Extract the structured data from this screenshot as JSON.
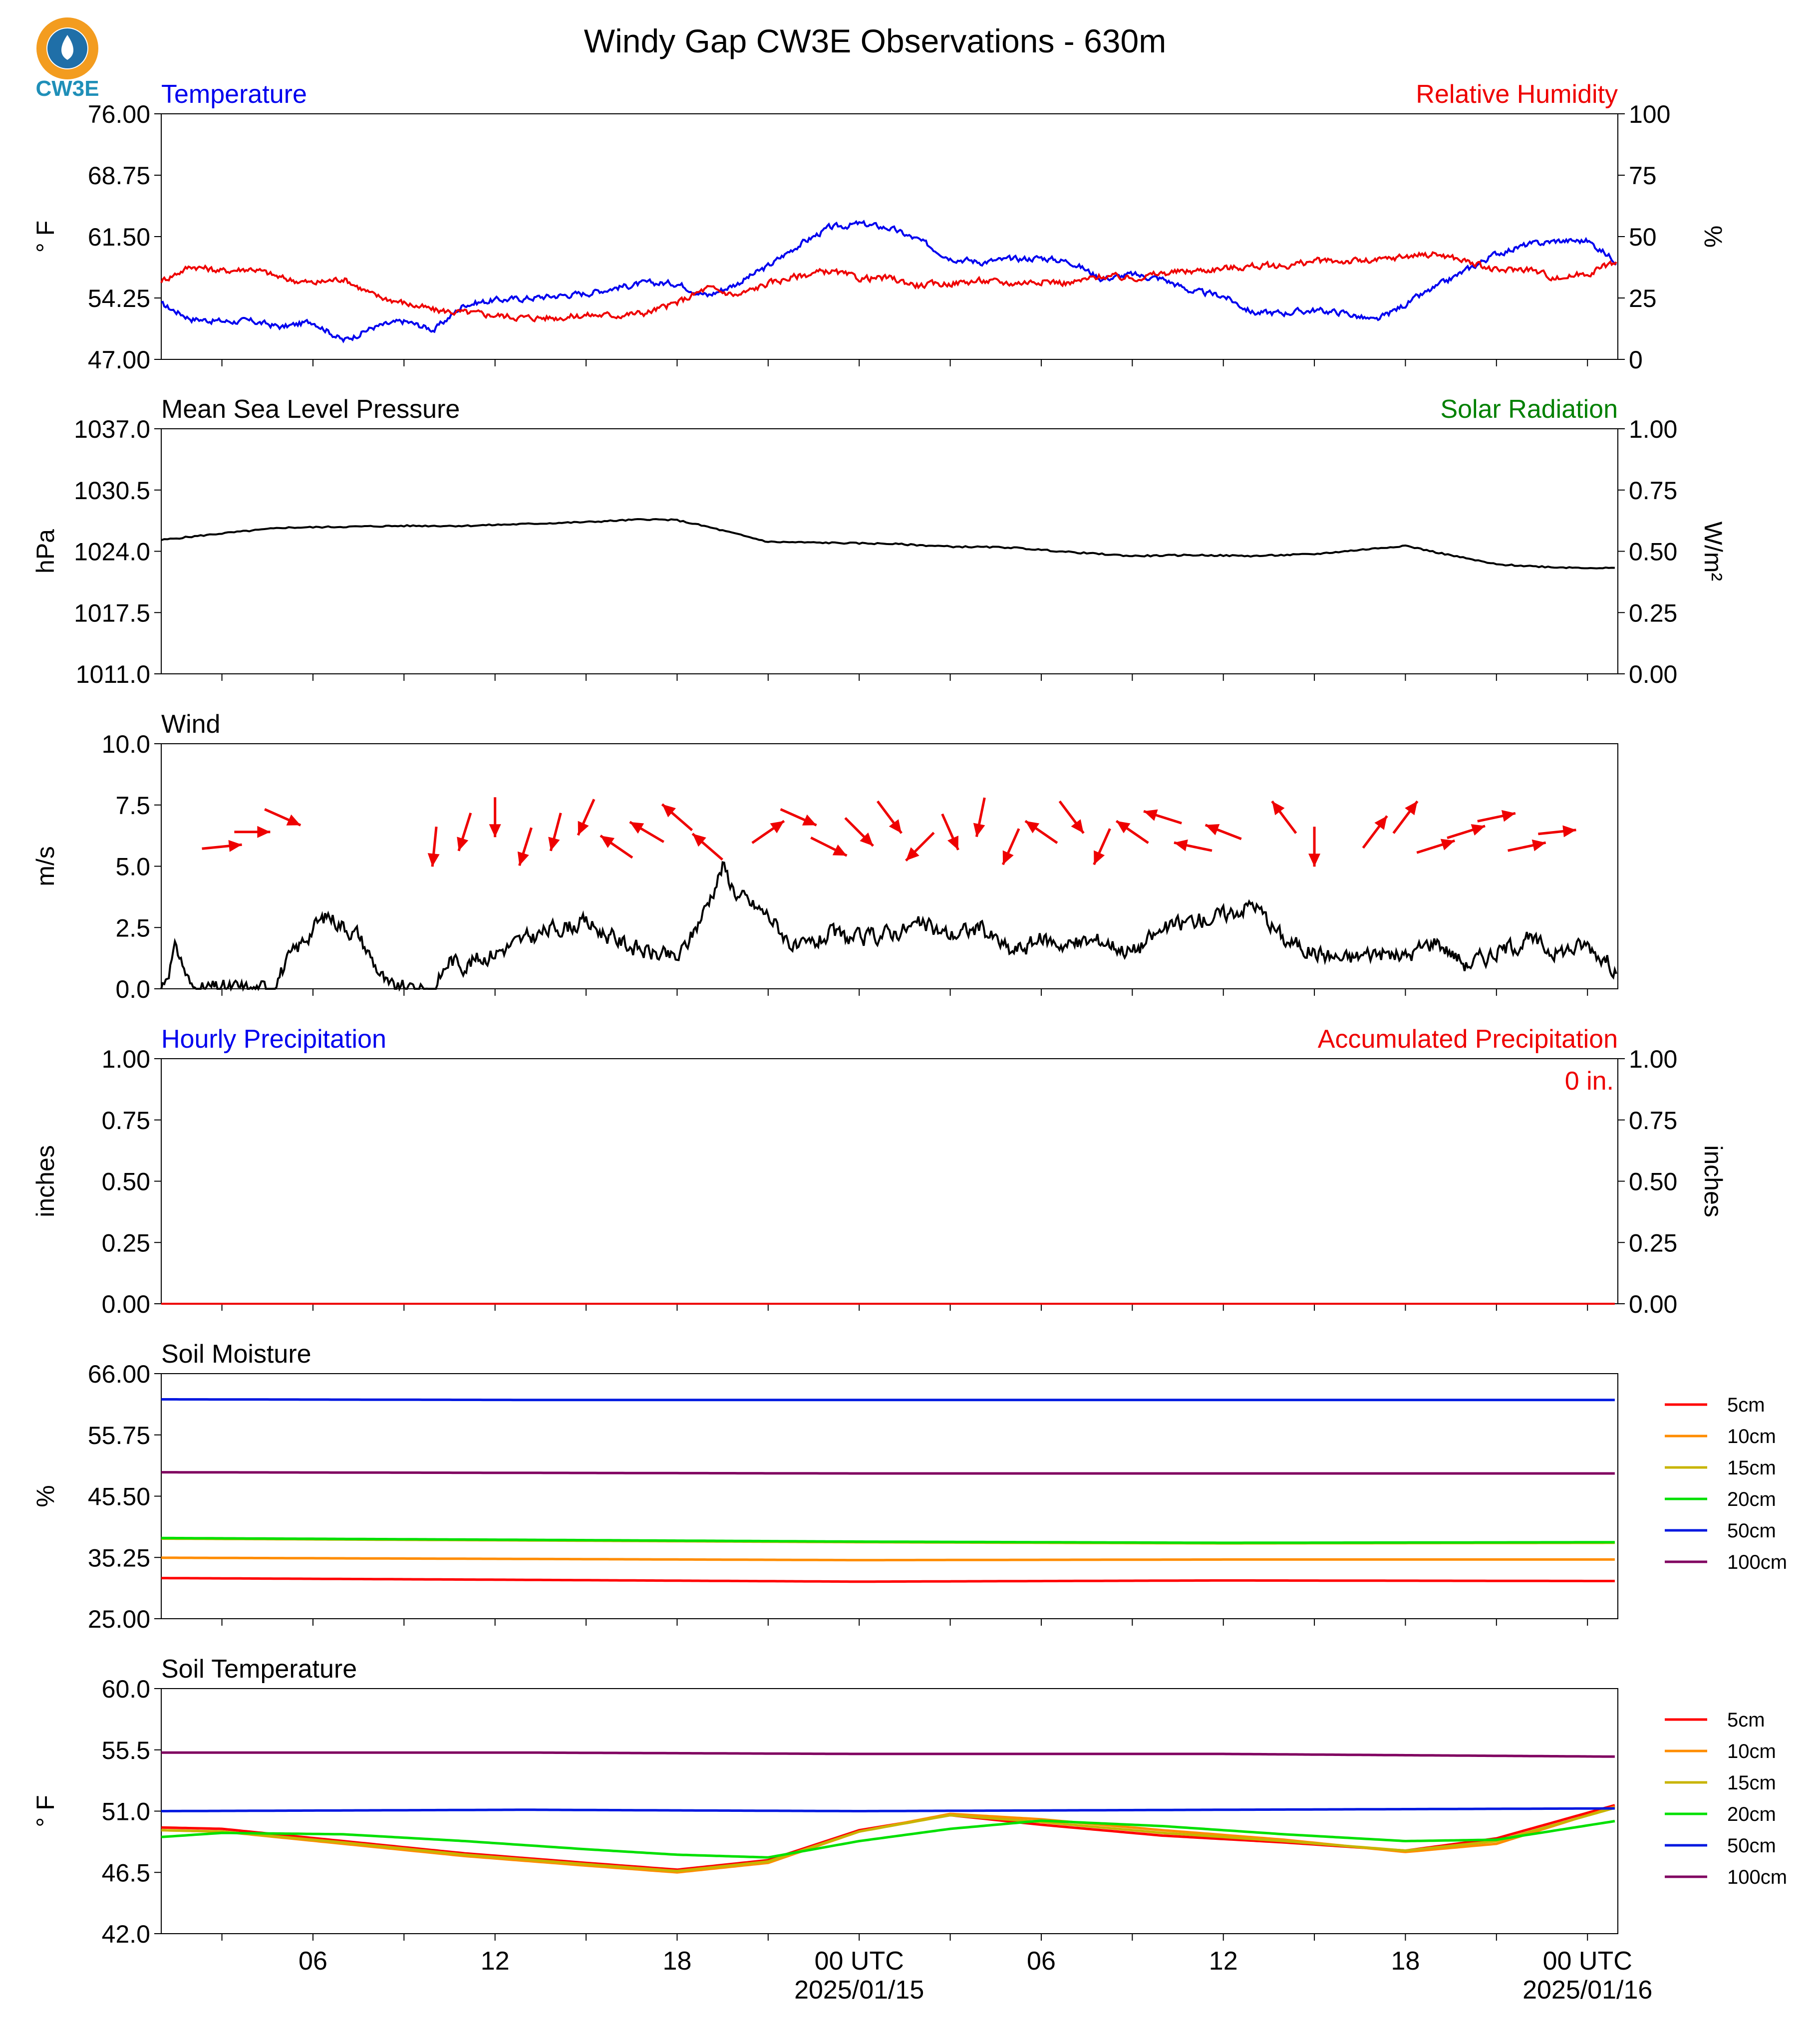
{
  "title": "Windy Gap CW3E Observations - 630m",
  "logo": {
    "text": "CW3E",
    "ring_color": "#f39c1f",
    "drop_color": "#1f6fa8"
  },
  "time_axis": {
    "hours_range": [
      -23,
      25
    ],
    "ticks": [
      {
        "hour": -18,
        "label": "06",
        "sub": ""
      },
      {
        "hour": -12,
        "label": "12",
        "sub": ""
      },
      {
        "hour": -6,
        "label": "18",
        "sub": ""
      },
      {
        "hour": 0,
        "label": "00 UTC",
        "sub": "2025/01/15"
      },
      {
        "hour": 6,
        "label": "06",
        "sub": ""
      },
      {
        "hour": 12,
        "label": "12",
        "sub": ""
      },
      {
        "hour": 18,
        "label": "18",
        "sub": ""
      },
      {
        "hour": 24,
        "label": "00 UTC",
        "sub": "2025/01/16"
      }
    ]
  },
  "colors": {
    "temperature": "#0000ee",
    "humidity": "#ee0000",
    "solar": "#008000",
    "pressure": "#000000",
    "wind_speed": "#000000",
    "wind_arrow": "#ee0000",
    "precip_hourly": "#0000ee",
    "precip_accum": "#ee0000"
  },
  "legend_depths": [
    {
      "label": "5cm",
      "color": "#ff0000"
    },
    {
      "label": "10cm",
      "color": "#ff8c00"
    },
    {
      "label": "15cm",
      "color": "#c8b400"
    },
    {
      "label": "20cm",
      "color": "#00e000"
    },
    {
      "label": "50cm",
      "color": "#0018e0"
    },
    {
      "label": "100cm",
      "color": "#800060"
    }
  ],
  "chart_data": [
    {
      "type": "line",
      "title_left": "Temperature",
      "title_right": "Relative Humidity",
      "ylabel_left": "° F",
      "ylabel_right": "%",
      "ylim_left": [
        47.0,
        76.0
      ],
      "ylim_right": [
        0,
        100
      ],
      "yticks_left": [
        "76.00",
        "68.75",
        "61.50",
        "54.25",
        "47.00"
      ],
      "yticks_right": [
        "100",
        "75",
        "50",
        "25",
        "0"
      ],
      "series": [
        {
          "axis": "left",
          "color": "#0000ee",
          "x": [
            -23,
            -22,
            -21,
            -20,
            -19,
            -18,
            -17,
            -16,
            -15,
            -14,
            -13,
            -12,
            -11,
            -10,
            -9,
            -8,
            -7,
            -6,
            -5,
            -4,
            -3,
            -2,
            -1,
            0,
            1,
            2,
            3,
            4,
            5,
            6,
            7,
            8,
            9,
            10,
            11,
            12,
            13,
            14,
            15,
            16,
            17,
            18,
            19,
            20,
            21,
            22,
            23,
            24,
            25
          ],
          "y": [
            53.5,
            51.8,
            51.5,
            51.5,
            50.8,
            51.5,
            49.2,
            50.8,
            51.5,
            50.5,
            53.5,
            54.0,
            54.2,
            54.5,
            54.8,
            55.5,
            56.0,
            56.0,
            54.5,
            56.0,
            58.0,
            60.5,
            62.5,
            63.0,
            62.5,
            61.0,
            59.0,
            58.5,
            58.8,
            59.0,
            58.5,
            56.5,
            57.0,
            56.5,
            55.0,
            54.5,
            52.5,
            52.5,
            52.8,
            52.5,
            51.5,
            53.5,
            55.5,
            57.5,
            59.5,
            60.5,
            61.0,
            61.0,
            58.5
          ]
        },
        {
          "axis": "right",
          "color": "#ee0000",
          "x": [
            -23,
            -22,
            -21,
            -20,
            -19,
            -18,
            -17,
            -16,
            -15,
            -14,
            -13,
            -12,
            -11,
            -10,
            -9,
            -8,
            -7,
            -6,
            -5,
            -4,
            -3,
            -2,
            -1,
            0,
            1,
            2,
            3,
            4,
            5,
            6,
            7,
            8,
            9,
            10,
            11,
            12,
            13,
            14,
            15,
            16,
            17,
            18,
            19,
            20,
            21,
            22,
            23,
            24,
            25
          ],
          "y": [
            32,
            38,
            36,
            37,
            33,
            31,
            33,
            26,
            23,
            20,
            19,
            18,
            17,
            17,
            18,
            18,
            19,
            23,
            29,
            26,
            31,
            34,
            36,
            33,
            33,
            30,
            31,
            32,
            31,
            32,
            31,
            34,
            33,
            35,
            36,
            37,
            38,
            38,
            40,
            40,
            40,
            42,
            43,
            40,
            36,
            37,
            33,
            35,
            40
          ]
        }
      ]
    },
    {
      "type": "line",
      "title_left": "Mean Sea Level Pressure",
      "title_right": "Solar Radiation",
      "ylabel_left": "hPa",
      "ylabel_right": "W/m²",
      "ylim_left": [
        1011.0,
        1037.0
      ],
      "ylim_right": [
        0.0,
        1.0
      ],
      "yticks_left": [
        "1037.0",
        "1030.5",
        "1024.0",
        "1017.5",
        "1011.0"
      ],
      "yticks_right": [
        "1.00",
        "0.75",
        "0.50",
        "0.25",
        "0.00"
      ],
      "series": [
        {
          "axis": "left",
          "color": "#000000",
          "x": [
            -23,
            -21,
            -19,
            -17,
            -15,
            -13,
            -11,
            -9,
            -7,
            -6,
            -5,
            -3,
            -1,
            1,
            3,
            5,
            7,
            9,
            11,
            13,
            15,
            17,
            18,
            19,
            21,
            23,
            25
          ],
          "y": [
            1025.2,
            1025.9,
            1026.5,
            1026.6,
            1026.7,
            1026.7,
            1026.9,
            1027.1,
            1027.4,
            1027.3,
            1026.6,
            1025.0,
            1024.9,
            1024.8,
            1024.5,
            1024.4,
            1023.9,
            1023.5,
            1023.6,
            1023.5,
            1023.7,
            1024.3,
            1024.6,
            1023.9,
            1022.6,
            1022.3,
            1022.2
          ]
        }
      ]
    },
    {
      "type": "line",
      "title_left": "Wind",
      "ylabel_left": "m/s",
      "ylim_left": [
        0.0,
        10.0
      ],
      "yticks_left": [
        "10.0",
        "7.5",
        "5.0",
        "2.5",
        "0.0"
      ],
      "series": [
        {
          "axis": "left",
          "color": "#000000",
          "x": [
            -23,
            -22.5,
            -22,
            -21,
            -19.5,
            -19,
            -18,
            -17.5,
            -16.5,
            -15.5,
            -14,
            -13.5,
            -13,
            -12,
            -11,
            -10,
            -9,
            -8,
            -7,
            -6,
            -5.5,
            -5,
            -4.5,
            -4,
            -3,
            -2,
            -1,
            0,
            1,
            2,
            3,
            4,
            5,
            6,
            7,
            8,
            9,
            10,
            11,
            12,
            13,
            14,
            15,
            16,
            17,
            18,
            19,
            20,
            21,
            22,
            23,
            24,
            25
          ],
          "y": [
            0.0,
            1.7,
            0.0,
            0.0,
            0.0,
            0.8,
            2.5,
            3.0,
            2.2,
            0.0,
            0.0,
            1.2,
            1.0,
            1.5,
            2.0,
            2.5,
            2.7,
            2.0,
            1.5,
            1.2,
            2.2,
            3.5,
            5.0,
            3.8,
            3.0,
            1.5,
            2.2,
            2.0,
            2.3,
            2.6,
            2.2,
            2.5,
            1.5,
            2.0,
            1.8,
            2.0,
            1.5,
            2.4,
            2.8,
            3.0,
            3.5,
            2.0,
            1.5,
            1.2,
            1.5,
            1.3,
            2.0,
            1.0,
            1.5,
            2.0,
            1.5,
            1.8,
            0.8
          ]
        }
      ],
      "wind_arrows": [
        {
          "hour": -21,
          "u": 1.0,
          "v": 0.1
        },
        {
          "hour": -20,
          "u": 0.9,
          "v": 0.0
        },
        {
          "hour": -19,
          "u": 0.9,
          "v": -0.4
        },
        {
          "hour": -14,
          "u": -0.1,
          "v": -1.0
        },
        {
          "hour": -13,
          "u": -0.3,
          "v": -0.95
        },
        {
          "hour": -12,
          "u": 0.0,
          "v": -1.0
        },
        {
          "hour": -11,
          "u": -0.3,
          "v": -0.95
        },
        {
          "hour": -10,
          "u": -0.25,
          "v": -0.95
        },
        {
          "hour": -9,
          "u": -0.4,
          "v": -0.9
        },
        {
          "hour": -8,
          "u": -0.8,
          "v": 0.55
        },
        {
          "hour": -7,
          "u": -0.85,
          "v": 0.5
        },
        {
          "hour": -6,
          "u": -0.75,
          "v": 0.65
        },
        {
          "hour": -5,
          "u": -0.75,
          "v": 0.65
        },
        {
          "hour": -3,
          "u": 0.8,
          "v": 0.55
        },
        {
          "hour": -2,
          "u": 0.9,
          "v": -0.4
        },
        {
          "hour": -1,
          "u": 0.9,
          "v": -0.45
        },
        {
          "hour": 0,
          "u": 0.7,
          "v": -0.7
        },
        {
          "hour": 1,
          "u": 0.6,
          "v": -0.8
        },
        {
          "hour": 2,
          "u": -0.7,
          "v": -0.7
        },
        {
          "hour": 3,
          "u": 0.4,
          "v": -0.9
        },
        {
          "hour": 4,
          "u": -0.2,
          "v": -0.98
        },
        {
          "hour": 5,
          "u": -0.4,
          "v": -0.9
        },
        {
          "hour": 6,
          "u": -0.8,
          "v": 0.55
        },
        {
          "hour": 7,
          "u": 0.6,
          "v": -0.8
        },
        {
          "hour": 8,
          "u": -0.4,
          "v": -0.9
        },
        {
          "hour": 9,
          "u": -0.8,
          "v": 0.55
        },
        {
          "hour": 10,
          "u": -0.95,
          "v": 0.3
        },
        {
          "hour": 11,
          "u": -0.95,
          "v": 0.2
        },
        {
          "hour": 12,
          "u": -0.9,
          "v": 0.35
        },
        {
          "hour": 14,
          "u": -0.6,
          "v": 0.8
        },
        {
          "hour": 15,
          "u": 0.0,
          "v": -1.0
        },
        {
          "hour": 17,
          "u": 0.6,
          "v": 0.8
        },
        {
          "hour": 18,
          "u": 0.6,
          "v": 0.8
        },
        {
          "hour": 19,
          "u": 0.95,
          "v": 0.3
        },
        {
          "hour": 20,
          "u": 0.95,
          "v": 0.3
        },
        {
          "hour": 21,
          "u": 0.95,
          "v": 0.2
        },
        {
          "hour": 22,
          "u": 0.95,
          "v": 0.2
        },
        {
          "hour": 23,
          "u": 0.95,
          "v": 0.1
        }
      ]
    },
    {
      "type": "bar",
      "title_left": "Hourly Precipitation",
      "title_right": "Accumulated Precipitation",
      "annotation": "0 in.",
      "ylabel_left": "inches",
      "ylabel_right": "inches",
      "ylim_left": [
        0.0,
        1.0
      ],
      "ylim_right": [
        0.0,
        1.0
      ],
      "yticks_left": [
        "1.00",
        "0.75",
        "0.50",
        "0.25",
        "0.00"
      ],
      "yticks_right": [
        "1.00",
        "0.75",
        "0.50",
        "0.25",
        "0.00"
      ],
      "series": [
        {
          "axis": "left",
          "color": "#ee0000",
          "x": [
            -23,
            25
          ],
          "y": [
            0.0,
            0.0
          ]
        }
      ]
    },
    {
      "type": "line",
      "title_left": "Soil Moisture",
      "ylabel_left": "%",
      "ylim_left": [
        25.0,
        66.0
      ],
      "yticks_left": [
        "66.00",
        "55.75",
        "45.50",
        "35.25",
        "25.00"
      ],
      "legend": true,
      "series": [
        {
          "name": "5cm",
          "color": "#ff0000",
          "x": [
            -23,
            -11,
            0,
            12,
            25
          ],
          "y": [
            31.8,
            31.5,
            31.2,
            31.4,
            31.3
          ]
        },
        {
          "name": "10cm",
          "color": "#ff8c00",
          "x": [
            -23,
            -11,
            0,
            12,
            25
          ],
          "y": [
            35.2,
            35.0,
            34.8,
            34.9,
            34.9
          ]
        },
        {
          "name": "15cm",
          "color": "#c8b400",
          "x": [
            -23,
            -11,
            0,
            12,
            25
          ],
          "y": [
            38.4,
            38.1,
            37.8,
            37.6,
            37.7
          ]
        },
        {
          "name": "20cm",
          "color": "#00e000",
          "x": [
            -23,
            -11,
            0,
            12,
            25
          ],
          "y": [
            38.5,
            38.2,
            37.9,
            37.7,
            37.8
          ]
        },
        {
          "name": "50cm",
          "color": "#0018e0",
          "x": [
            -23,
            -11,
            0,
            12,
            25
          ],
          "y": [
            61.7,
            61.6,
            61.6,
            61.6,
            61.6
          ]
        },
        {
          "name": "100cm",
          "color": "#800060",
          "x": [
            -23,
            -11,
            0,
            12,
            25
          ],
          "y": [
            49.5,
            49.4,
            49.3,
            49.3,
            49.3
          ]
        }
      ]
    },
    {
      "type": "line",
      "title_left": "Soil Temperature",
      "ylabel_left": "° F",
      "ylim_left": [
        42.0,
        60.0
      ],
      "yticks_left": [
        "60.0",
        "55.5",
        "51.0",
        "46.5",
        "42.0"
      ],
      "legend": true,
      "series": [
        {
          "name": "5cm",
          "color": "#ff0000",
          "x": [
            -23,
            -21,
            -17,
            -13,
            -9,
            -6,
            -3,
            0,
            3,
            6,
            10,
            14,
            18,
            21,
            25
          ],
          "y": [
            49.8,
            49.7,
            48.8,
            47.9,
            47.2,
            46.7,
            47.4,
            49.6,
            50.7,
            50.0,
            49.2,
            48.7,
            48.1,
            49.0,
            51.5
          ]
        },
        {
          "name": "10cm",
          "color": "#ff8c00",
          "x": [
            -23,
            -21,
            -17,
            -13,
            -9,
            -6,
            -3,
            0,
            3,
            6,
            10,
            14,
            18,
            21,
            25
          ],
          "y": [
            49.6,
            49.5,
            48.6,
            47.7,
            47.0,
            46.5,
            47.2,
            49.5,
            50.8,
            50.4,
            49.6,
            48.9,
            48.0,
            48.6,
            51.4
          ]
        },
        {
          "name": "15cm",
          "color": "#c8b400",
          "x": [
            -23,
            -21,
            -17,
            -13,
            -9,
            -6,
            -3,
            0,
            3,
            6,
            10,
            14,
            18,
            21,
            25
          ],
          "y": [
            49.6,
            49.5,
            48.7,
            47.8,
            47.1,
            46.6,
            47.3,
            49.5,
            50.7,
            50.2,
            49.4,
            48.8,
            48.1,
            48.8,
            51.3
          ]
        },
        {
          "name": "20cm",
          "color": "#00e000",
          "x": [
            -23,
            -21,
            -17,
            -13,
            -9,
            -6,
            -3,
            0,
            3,
            6,
            10,
            14,
            18,
            21,
            25
          ],
          "y": [
            49.1,
            49.4,
            49.3,
            48.8,
            48.2,
            47.8,
            47.6,
            48.8,
            49.7,
            50.3,
            49.9,
            49.3,
            48.8,
            48.9,
            50.3
          ]
        },
        {
          "name": "50cm",
          "color": "#0018e0",
          "x": [
            -23,
            -11,
            0,
            12,
            25
          ],
          "y": [
            51.0,
            51.1,
            51.0,
            51.1,
            51.2
          ]
        },
        {
          "name": "100cm",
          "color": "#800060",
          "x": [
            -23,
            -11,
            0,
            12,
            25
          ],
          "y": [
            55.3,
            55.3,
            55.2,
            55.2,
            55.0
          ]
        }
      ]
    }
  ]
}
